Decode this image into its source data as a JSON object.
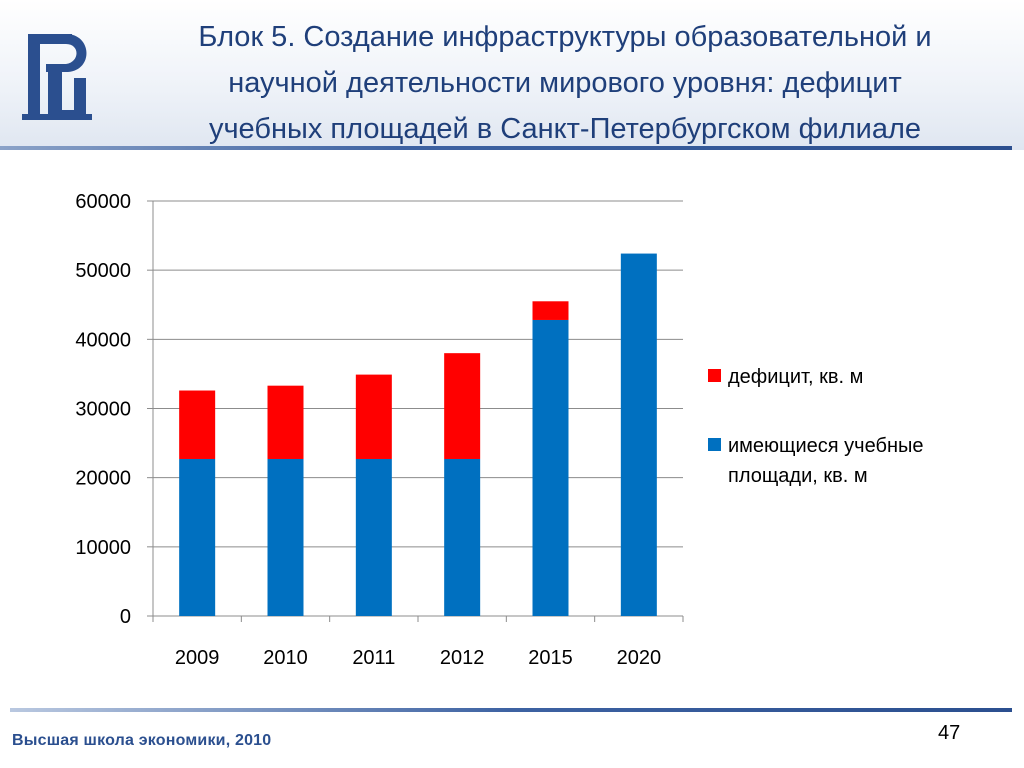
{
  "slide": {
    "title_lines": [
      "Блок 5. Создание инфраструктуры образовательной и",
      "научной деятельности мирового уровня: дефицит",
      "учебных площадей в Санкт-Петербургском филиале"
    ],
    "footer": "Высшая школа экономики, 2010",
    "page_number": "47"
  },
  "logo": {
    "icon": "hse-logo-icon",
    "color": "#2b4f8f"
  },
  "chart_data": {
    "type": "bar",
    "stacked": true,
    "categories": [
      "2009",
      "2010",
      "2011",
      "2012",
      "2015",
      "2020"
    ],
    "series": [
      {
        "name": "имеющиеся учебные площади, кв. м",
        "color": "#0070c0",
        "values": [
          22700,
          22700,
          22700,
          22700,
          42800,
          52400
        ]
      },
      {
        "name": "дефицит, кв. м",
        "color": "#ff0000",
        "values": [
          9900,
          10600,
          12200,
          15300,
          2700,
          0
        ]
      }
    ],
    "legend_order": [
      "дефицит, кв. м",
      "имеющиеся учебные площади, кв. м"
    ],
    "y_ticks": [
      "0",
      "10000",
      "20000",
      "30000",
      "40000",
      "50000",
      "60000"
    ],
    "ylim": [
      0,
      60000
    ],
    "grid": true,
    "legend_position": "right"
  }
}
